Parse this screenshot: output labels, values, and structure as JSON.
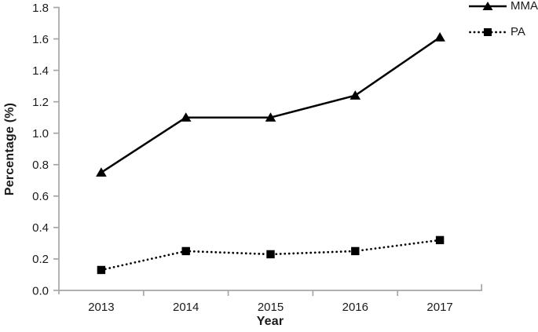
{
  "chart_data": {
    "type": "line",
    "title": "",
    "xlabel": "Year",
    "ylabel": "Percentage (%)",
    "categories": [
      "2013",
      "2014",
      "2015",
      "2016",
      "2017"
    ],
    "series": [
      {
        "name": "MMA",
        "values": [
          0.75,
          1.1,
          1.1,
          1.24,
          1.61
        ],
        "line_style": "solid",
        "marker": "triangle",
        "color": "#000000"
      },
      {
        "name": "PA",
        "values": [
          0.13,
          0.25,
          0.23,
          0.25,
          0.32
        ],
        "line_style": "dotted",
        "marker": "square",
        "color": "#000000"
      }
    ],
    "ylim": [
      0,
      1.8
    ],
    "ytick_step": 0.2,
    "ytick_labels": [
      "0.0",
      "0.2",
      "0.4",
      "0.6",
      "0.8",
      "1.0",
      "1.2",
      "1.4",
      "1.6",
      "1.8"
    ],
    "grid": false,
    "legend_position": "top-right",
    "axis_color": "#a6a6a6",
    "text_color": "#1a1a1a",
    "series_color": "#000000"
  }
}
